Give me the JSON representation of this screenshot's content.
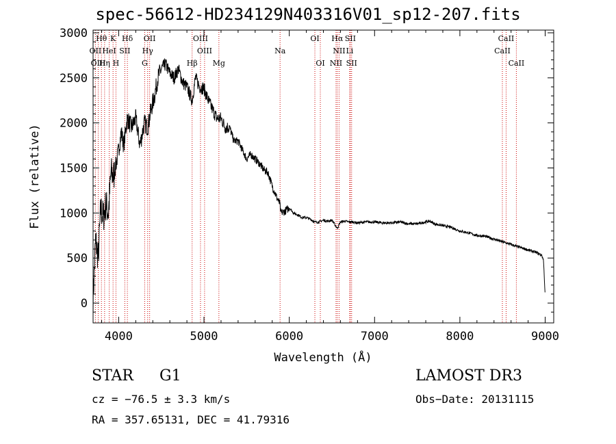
{
  "chart_data": {
    "type": "line",
    "title": "spec-56612-HD234129N403316V01_sp12-207.fits",
    "xlabel": "Wavelength (Å)",
    "ylabel": "Flux (relative)",
    "xlim": [
      3700,
      9100
    ],
    "ylim": [
      -220,
      3030
    ],
    "xticks": [
      4000,
      5000,
      6000,
      7000,
      8000,
      9000
    ],
    "yticks": [
      0,
      500,
      1000,
      1500,
      2000,
      2500,
      3000
    ],
    "grid": false,
    "series": [
      {
        "name": "spectrum",
        "color": "#000000",
        "x": [
          3700,
          3730,
          3760,
          3790,
          3820,
          3850,
          3880,
          3910,
          3940,
          3970,
          4000,
          4030,
          4060,
          4100,
          4150,
          4200,
          4250,
          4300,
          4340,
          4380,
          4420,
          4460,
          4500,
          4550,
          4600,
          4650,
          4700,
          4750,
          4800,
          4861,
          4900,
          4950,
          5000,
          5050,
          5100,
          5150,
          5200,
          5250,
          5300,
          5350,
          5400,
          5450,
          5500,
          5550,
          5600,
          5650,
          5700,
          5750,
          5800,
          5850,
          5890,
          5900,
          5950,
          6000,
          6050,
          6100,
          6150,
          6200,
          6250,
          6300,
          6350,
          6400,
          6450,
          6500,
          6563,
          6600,
          6650,
          6700,
          6750,
          6800,
          6900,
          7000,
          7100,
          7200,
          7300,
          7400,
          7500,
          7600,
          7650,
          7700,
          7800,
          7900,
          8000,
          8100,
          8200,
          8300,
          8400,
          8500,
          8600,
          8700,
          8800,
          8900,
          8960,
          8980,
          9000
        ],
        "values": [
          50,
          700,
          500,
          1050,
          950,
          1100,
          1000,
          1450,
          1400,
          1550,
          1700,
          1900,
          1750,
          2050,
          1950,
          2050,
          1750,
          2000,
          1950,
          2150,
          2300,
          2500,
          2600,
          2650,
          2550,
          2500,
          2600,
          2450,
          2400,
          2250,
          2500,
          2400,
          2380,
          2250,
          2150,
          2050,
          2050,
          1950,
          1950,
          1800,
          1800,
          1700,
          1600,
          1650,
          1600,
          1550,
          1480,
          1450,
          1300,
          1180,
          1100,
          1000,
          1020,
          1060,
          1000,
          980,
          950,
          950,
          930,
          900,
          900,
          920,
          910,
          920,
          830,
          900,
          910,
          900,
          900,
          890,
          900,
          900,
          890,
          890,
          900,
          880,
          880,
          900,
          910,
          880,
          860,
          840,
          800,
          780,
          750,
          740,
          710,
          680,
          650,
          620,
          590,
          560,
          530,
          480,
          80
        ]
      }
    ],
    "lines": [
      {
        "label": "Hθ",
        "wavelength": 3798,
        "row": 0,
        "color": "#cc0000"
      },
      {
        "label": "K",
        "wavelength": 3934,
        "row": 0,
        "color": "#cc0000"
      },
      {
        "label": "Hδ",
        "wavelength": 4102,
        "row": 0,
        "color": "#cc0000"
      },
      {
        "label": "OII",
        "wavelength": 4363,
        "row": 0,
        "color": "#cc0000"
      },
      {
        "label": "OIII",
        "wavelength": 4959,
        "row": 0,
        "color": "#cc0000"
      },
      {
        "label": "OI",
        "wavelength": 6300,
        "row": 0,
        "color": "#cc0000"
      },
      {
        "label": "Hα",
        "wavelength": 6563,
        "row": 0,
        "color": "#cc0000"
      },
      {
        "label": "SII",
        "wavelength": 6716,
        "row": 0,
        "color": "#cc0000"
      },
      {
        "label": "CaII",
        "wavelength": 8542,
        "row": 0,
        "color": "#cc0000"
      },
      {
        "label": "OII",
        "wavelength": 3727,
        "row": 1,
        "color": "#cc0000"
      },
      {
        "label": "HeI",
        "wavelength": 3889,
        "row": 1,
        "color": "#cc0000"
      },
      {
        "label": "SII",
        "wavelength": 4072,
        "row": 1,
        "color": "#cc0000"
      },
      {
        "label": "Hγ",
        "wavelength": 4340,
        "row": 1,
        "color": "#cc0000"
      },
      {
        "label": "OIII",
        "wavelength": 5007,
        "row": 1,
        "color": "#cc0000"
      },
      {
        "label": "Na",
        "wavelength": 5892,
        "row": 1,
        "color": "#cc0000"
      },
      {
        "label": "NII",
        "wavelength": 6584,
        "row": 1,
        "color": "#cc0000"
      },
      {
        "label": "Li",
        "wavelength": 6708,
        "row": 1,
        "color": "#cc0000"
      },
      {
        "label": "CaII",
        "wavelength": 8498,
        "row": 1,
        "color": "#cc0000"
      },
      {
        "label": "OIII",
        "wavelength": 3760,
        "row": 2,
        "color": "#cc0000"
      },
      {
        "label": "Hη",
        "wavelength": 3835,
        "row": 2,
        "color": "#cc0000"
      },
      {
        "label": "H",
        "wavelength": 3968,
        "row": 2,
        "color": "#cc0000"
      },
      {
        "label": "G",
        "wavelength": 4305,
        "row": 2,
        "color": "#cc0000"
      },
      {
        "label": "Hβ",
        "wavelength": 4861,
        "row": 2,
        "color": "#cc0000"
      },
      {
        "label": "Mg",
        "wavelength": 5175,
        "row": 2,
        "color": "#cc0000"
      },
      {
        "label": "OI",
        "wavelength": 6364,
        "row": 2,
        "color": "#cc0000"
      },
      {
        "label": "NII",
        "wavelength": 6548,
        "row": 2,
        "color": "#cc0000"
      },
      {
        "label": "SII",
        "wavelength": 6731,
        "row": 2,
        "color": "#cc0000"
      },
      {
        "label": "CaII",
        "wavelength": 8662,
        "row": 2,
        "color": "#cc0000"
      }
    ]
  },
  "info": {
    "object_class": "STAR",
    "subclass": "G1",
    "survey": "LAMOST DR3",
    "cz_line": "cz = −76.5 ± 3.3 km/s",
    "obs_date_line": "Obs−Date: 20131115",
    "radec_line": "RA = 357.65131, DEC =  41.79316"
  }
}
